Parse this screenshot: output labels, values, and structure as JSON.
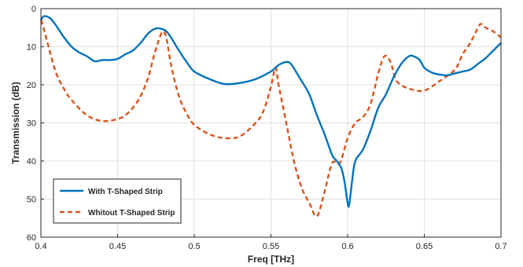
{
  "chart_data": {
    "type": "line",
    "xlabel": "Freq [THz]",
    "ylabel": "Transmission (dB)",
    "xlim": [
      0.4,
      0.7
    ],
    "ylim": [
      0,
      60
    ],
    "y_reversed": true,
    "grid": true,
    "legend_position": "bottom-left",
    "xticks": [
      0.4,
      0.45,
      0.5,
      0.55,
      0.6,
      0.65,
      0.7
    ],
    "xtick_labels": [
      "0.4",
      "0.45",
      "0.5",
      "0.55",
      "0.6",
      "0.65",
      "0.7"
    ],
    "yticks": [
      0,
      10,
      20,
      30,
      40,
      50,
      60
    ],
    "ytick_labels": [
      "0",
      "10",
      "20",
      "30",
      "40",
      "50",
      "60"
    ],
    "series": [
      {
        "name": "With T-Shaped Strip",
        "color": "#0072BD",
        "style": "solid",
        "x": [
          0.4,
          0.402,
          0.406,
          0.41,
          0.415,
          0.42,
          0.425,
          0.43,
          0.435,
          0.44,
          0.445,
          0.45,
          0.455,
          0.46,
          0.465,
          0.47,
          0.475,
          0.48,
          0.483,
          0.487,
          0.49,
          0.495,
          0.5,
          0.51,
          0.52,
          0.53,
          0.54,
          0.55,
          0.555,
          0.56,
          0.563,
          0.567,
          0.57,
          0.575,
          0.58,
          0.585,
          0.59,
          0.593,
          0.596,
          0.598,
          0.6,
          0.601,
          0.603,
          0.605,
          0.61,
          0.615,
          0.62,
          0.625,
          0.63,
          0.635,
          0.64,
          0.643,
          0.647,
          0.65,
          0.655,
          0.66,
          0.665,
          0.67,
          0.675,
          0.68,
          0.685,
          0.69,
          0.695,
          0.7
        ],
        "values": [
          3,
          2,
          2.5,
          4.5,
          7.5,
          10,
          11.5,
          12.5,
          13.8,
          13.5,
          13.5,
          13.2,
          12,
          11,
          9,
          6.5,
          5.2,
          5.5,
          6.5,
          9,
          11,
          14,
          16.5,
          18.5,
          19.8,
          19.5,
          18.5,
          16.5,
          14.8,
          14.0,
          14.5,
          17,
          19,
          22.5,
          28,
          33,
          38.5,
          40,
          42,
          45.5,
          51,
          51.5,
          45,
          40,
          37,
          32,
          26,
          22.5,
          18,
          14.5,
          12.5,
          12.5,
          13.5,
          15.5,
          16.8,
          17.3,
          17.5,
          17,
          16.5,
          16,
          14.5,
          13,
          11,
          9
        ]
      },
      {
        "name": "Whitout T-Shaped Strip",
        "color": "#D95319",
        "style": "dashed",
        "x": [
          0.4,
          0.401,
          0.405,
          0.41,
          0.415,
          0.42,
          0.43,
          0.44,
          0.45,
          0.455,
          0.46,
          0.465,
          0.47,
          0.474,
          0.478,
          0.48,
          0.482,
          0.485,
          0.49,
          0.495,
          0.5,
          0.51,
          0.52,
          0.53,
          0.54,
          0.545,
          0.55,
          0.553,
          0.555,
          0.56,
          0.565,
          0.57,
          0.575,
          0.58,
          0.585,
          0.59,
          0.595,
          0.6,
          0.605,
          0.61,
          0.615,
          0.62,
          0.624,
          0.628,
          0.632,
          0.64,
          0.65,
          0.66,
          0.67,
          0.675,
          0.68,
          0.685,
          0.687,
          0.69,
          0.695,
          0.7
        ],
        "values": [
          3,
          4,
          10,
          17,
          21,
          24,
          28,
          29.5,
          29,
          28,
          26,
          23,
          18,
          12,
          7,
          6,
          8,
          15,
          23,
          27.5,
          30.5,
          33,
          34,
          33.5,
          30,
          27,
          20.5,
          15.5,
          20,
          30,
          40,
          47,
          51,
          54.5,
          48,
          40.5,
          40.5,
          34,
          30,
          28.5,
          25,
          17,
          12.5,
          14,
          19,
          21,
          21.5,
          19,
          16,
          12,
          9,
          5,
          4,
          5,
          6,
          7.5
        ]
      }
    ]
  }
}
